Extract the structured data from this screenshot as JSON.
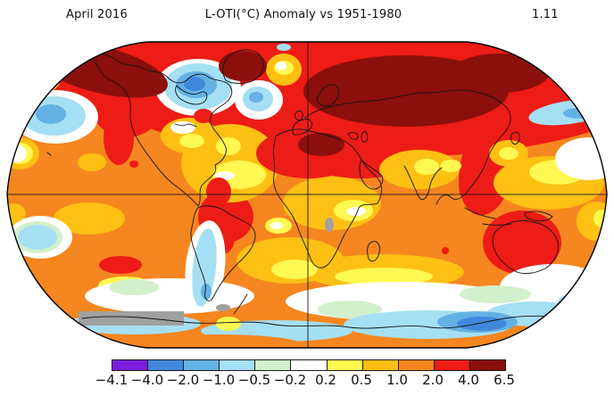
{
  "header": {
    "date": "April 2016",
    "title": "L-OTI(°C) Anomaly vs 1951-1980",
    "mean": "1.11"
  },
  "palette": {
    "purple": "#7b1edd",
    "blue": "#4188dd",
    "mid_blue": "#64b1e4",
    "pale_blue": "#a5dff3",
    "pale_green": "#d2f0cb",
    "white": "#ffffff",
    "yellow": "#fff850",
    "amber": "#fdc013",
    "orange": "#f6861f",
    "red": "#ed1c16",
    "dark_red": "#8b0f0a",
    "gray": "#a0a0a0"
  },
  "chart_data": {
    "type": "heatmap",
    "title": "L-OTI(°C) Anomaly vs 1951-1980",
    "period": "April 2016",
    "global_mean_anomaly_c": 1.11,
    "baseline": "1951-1980",
    "units": "°C",
    "projection": "Robinson",
    "colorbar": {
      "tick_labels": [
        "−4.1",
        "−4.0",
        "−2.0",
        "−1.0",
        "−0.5",
        "−0.2",
        "0.2",
        "0.5",
        "1.0",
        "2.0",
        "4.0",
        "6.5"
      ],
      "segment_color_names": [
        "purple",
        "blue",
        "mid_blue",
        "pale_blue",
        "pale_green",
        "white",
        "yellow",
        "amber",
        "orange",
        "red",
        "dark_red"
      ],
      "missing_data_color_name": "gray",
      "position": "bottom"
    },
    "regions": [
      {
        "name": "Siberia / Arctic Russia",
        "anomaly_c": "4.0 to 6.5"
      },
      {
        "name": "Alaska / Chukotka",
        "anomaly_c": "4.0 to 6.5"
      },
      {
        "name": "Greenland",
        "anomaly_c": "4.0 to 6.5"
      },
      {
        "name": "Western North America",
        "anomaly_c": "2.0 to 4.0"
      },
      {
        "name": "Hudson Bay / Eastern Canada",
        "anomaly_c": "-2.0 to -0.5"
      },
      {
        "name": "North Atlantic south of Greenland",
        "anomaly_c": "-2.0 to -0.5"
      },
      {
        "name": "Central North Pacific",
        "anomaly_c": "-1.0 to -0.2"
      },
      {
        "name": "Europe / Middle East",
        "anomaly_c": "2.0 to 4.0"
      },
      {
        "name": "North Africa / Sahara",
        "anomaly_c": "2.0 to 4.0"
      },
      {
        "name": "Eastern Mediterranean / Libya",
        "anomaly_c": "4.0 to 6.5"
      },
      {
        "name": "India / Central Asia",
        "anomaly_c": "1.0 to 2.0"
      },
      {
        "name": "Southeast Asia",
        "anomaly_c": "2.0 to 4.0"
      },
      {
        "name": "Brazil / Amazon",
        "anomaly_c": "2.0 to 4.0"
      },
      {
        "name": "Australia",
        "anomaly_c": "2.0 to 4.0"
      },
      {
        "name": "Tropical oceans",
        "anomaly_c": "0.5 to 1.0"
      },
      {
        "name": "Southern Ocean",
        "anomaly_c": "-0.5 to 0.5"
      },
      {
        "name": "Antarctic coast south of Australia",
        "anomaly_c": "-2.0 to -1.0"
      },
      {
        "name": "Patagonia coastal band",
        "anomaly_c": "-1.0 to -0.2"
      },
      {
        "name": "Antarctica (parts)",
        "anomaly_c": "missing data (gray)"
      }
    ]
  }
}
